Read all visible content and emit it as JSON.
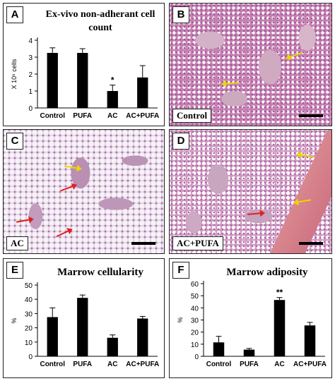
{
  "panels": {
    "a": {
      "letter": "A"
    },
    "b": {
      "letter": "B",
      "caption": "Control"
    },
    "c": {
      "letter": "C",
      "caption": "AC"
    },
    "d": {
      "letter": "D",
      "caption": "AC+PUFA"
    },
    "e": {
      "letter": "E"
    },
    "f": {
      "letter": "F"
    }
  },
  "chart_data": [
    {
      "id": "a",
      "type": "bar",
      "title": "Ex-vivo non-adherant cell count",
      "title_lines": [
        "Ex-vivo non-adherant cell",
        "count"
      ],
      "ylabel": "X 10⁶ cells",
      "categories": [
        "Control",
        "PUFA",
        "AC",
        "AC+PUFA"
      ],
      "values": [
        3.25,
        3.25,
        1.0,
        1.8
      ],
      "errors": [
        0.3,
        0.25,
        0.35,
        0.7
      ],
      "significance": [
        "",
        "",
        "*",
        ""
      ],
      "ylim": [
        0,
        4
      ],
      "yticks": [
        0,
        1,
        2,
        3,
        4
      ],
      "grid": false,
      "bar_color": "#000000"
    },
    {
      "id": "e",
      "type": "bar",
      "title": "Marrow cellularity",
      "ylabel": "%",
      "categories": [
        "Control",
        "PUFA",
        "AC",
        "AC+PUFA"
      ],
      "values": [
        27.5,
        41.0,
        13.0,
        26.5
      ],
      "errors": [
        6.5,
        2.0,
        2.0,
        1.5
      ],
      "significance": [
        "",
        "",
        "",
        ""
      ],
      "ylim": [
        0,
        50
      ],
      "yticks": [
        0,
        10,
        20,
        30,
        40,
        50
      ],
      "grid": false,
      "bar_color": "#000000"
    },
    {
      "id": "f",
      "type": "bar",
      "title": "Marrow adiposity",
      "ylabel": "%",
      "categories": [
        "Control",
        "PUFA",
        "AC",
        "AC+PUFA"
      ],
      "values": [
        11.5,
        5.5,
        46.5,
        25.5
      ],
      "errors": [
        5.0,
        1.0,
        2.0,
        2.5
      ],
      "significance": [
        "",
        "",
        "**",
        ""
      ],
      "ylim": [
        0,
        60
      ],
      "yticks": [
        0,
        10,
        20,
        30,
        40,
        50,
        60
      ],
      "grid": false,
      "bar_color": "#000000"
    }
  ]
}
